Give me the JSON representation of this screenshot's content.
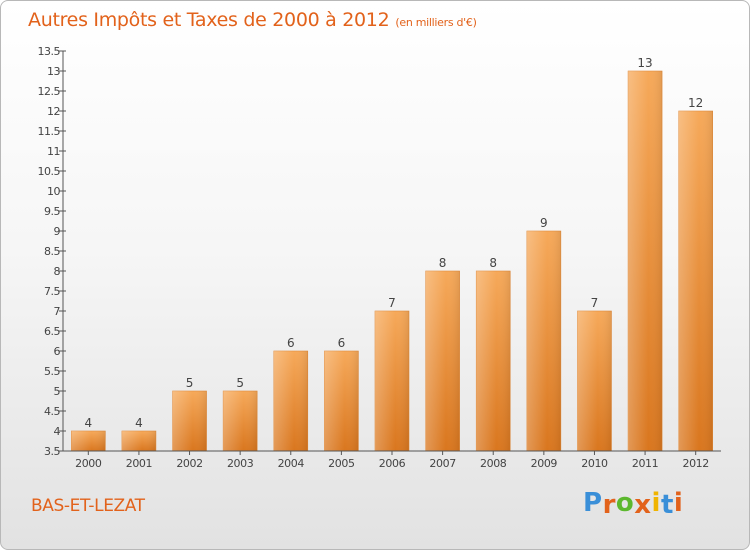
{
  "title": "Autres Impôts et Taxes de 2000 à 2012",
  "unit_label": "(en milliers d'€)",
  "commune": "BAS-ET-LEZAT",
  "brand": {
    "letters": [
      "P",
      "r",
      "o",
      "x",
      "i",
      "t",
      "i"
    ],
    "colors": [
      "#3a8fd8",
      "#e2621b",
      "#5cb82e",
      "#e2621b",
      "#f0b400",
      "#3a8fd8",
      "#e2621b"
    ]
  },
  "colors": {
    "title": "#e2621b",
    "bar_light": "#f6a95a",
    "bar_dark": "#d9761e",
    "axis": "#555555"
  },
  "chart_data": {
    "type": "bar",
    "categories": [
      "2000",
      "2001",
      "2002",
      "2003",
      "2004",
      "2005",
      "2006",
      "2007",
      "2008",
      "2009",
      "2010",
      "2011",
      "2012"
    ],
    "values": [
      4,
      4,
      5,
      5,
      6,
      6,
      7,
      8,
      8,
      9,
      7,
      13,
      12
    ],
    "value_labels": [
      "4",
      "4",
      "5",
      "5",
      "6",
      "6",
      "7",
      "8",
      "8",
      "9",
      "7",
      "13",
      "12"
    ],
    "yticks": [
      "3.5",
      "4",
      "4.5",
      "5",
      "5.5",
      "6",
      "6.5",
      "7",
      "7.5",
      "8",
      "8.5",
      "9",
      "9.5",
      "10",
      "10.5",
      "11",
      "11.5",
      "12",
      "12.5",
      "13",
      "13.5"
    ],
    "ylim": [
      3.5,
      13.5
    ],
    "xlabel": "",
    "ylabel": "",
    "grid": false
  }
}
